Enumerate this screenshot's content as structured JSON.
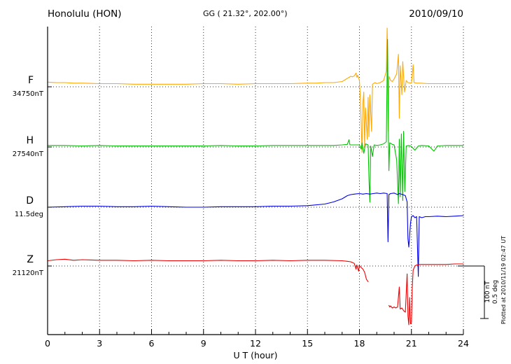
{
  "header": {
    "station": "Honolulu (HON)",
    "coords": "GG ( 21.32°, 202.00°)",
    "date": "2010/09/10"
  },
  "footer": {
    "xlabel": "U T (hour)"
  },
  "side": {
    "plotted_at": "Plotted at 2010/11/19 02:47 UT",
    "scale_nt": "100 nT",
    "scale_deg": "0.5 deg"
  },
  "chart_data": {
    "type": "line",
    "title": "Honolulu (HON) magnetogram",
    "xlabel": "U T (hour)",
    "x_range": [
      0,
      24
    ],
    "x_ticks": [
      0,
      3,
      6,
      9,
      12,
      15,
      18,
      21,
      24
    ],
    "grid": "dotted",
    "scale_bar": {
      "nT": 100,
      "deg": 0.5
    },
    "series": [
      {
        "name": "F",
        "base_label": "34750nT",
        "unit": "nT",
        "color": "#FFA800",
        "points": [
          [
            0,
            9
          ],
          [
            0.5,
            8
          ],
          [
            1,
            8
          ],
          [
            1.5,
            7
          ],
          [
            2,
            7
          ],
          [
            3,
            6
          ],
          [
            4,
            6
          ],
          [
            5,
            5
          ],
          [
            6,
            5
          ],
          [
            7,
            5
          ],
          [
            8,
            5
          ],
          [
            9,
            6
          ],
          [
            10,
            6
          ],
          [
            11,
            5
          ],
          [
            12,
            6
          ],
          [
            13,
            6
          ],
          [
            14,
            6
          ],
          [
            15,
            7
          ],
          [
            15.5,
            7
          ],
          [
            16,
            8
          ],
          [
            16.5,
            8
          ],
          [
            17,
            10
          ],
          [
            17.2,
            14
          ],
          [
            17.4,
            18
          ],
          [
            17.5,
            20
          ],
          [
            17.6,
            19
          ],
          [
            17.7,
            21
          ],
          [
            17.8,
            26
          ],
          [
            17.85,
            18
          ],
          [
            17.9,
            22
          ],
          [
            18.0,
            12
          ],
          [
            18.05,
            -20
          ],
          [
            18.1,
            -70
          ],
          [
            18.15,
            -125
          ],
          [
            18.2,
            -30
          ],
          [
            18.25,
            -10
          ],
          [
            18.3,
            -115
          ],
          [
            18.35,
            -40
          ],
          [
            18.45,
            -100
          ],
          [
            18.5,
            -20
          ],
          [
            18.55,
            -95
          ],
          [
            18.6,
            -15
          ],
          [
            18.7,
            -85
          ],
          [
            18.75,
            5
          ],
          [
            18.9,
            8
          ],
          [
            19.0,
            6
          ],
          [
            19.2,
            8
          ],
          [
            19.4,
            12
          ],
          [
            19.55,
            30
          ],
          [
            19.6,
            112
          ],
          [
            19.63,
            50
          ],
          [
            19.67,
            -85
          ],
          [
            19.7,
            20
          ],
          [
            19.8,
            12
          ],
          [
            19.9,
            10
          ],
          [
            20.0,
            15
          ],
          [
            20.15,
            25
          ],
          [
            20.25,
            62
          ],
          [
            20.3,
            -60
          ],
          [
            20.35,
            40
          ],
          [
            20.45,
            -15
          ],
          [
            20.5,
            48
          ],
          [
            20.6,
            -10
          ],
          [
            20.7,
            12
          ],
          [
            20.8,
            8
          ],
          [
            21.0,
            7
          ],
          [
            21.1,
            42
          ],
          [
            21.15,
            8
          ],
          [
            21.3,
            7
          ],
          [
            21.5,
            7
          ],
          [
            22,
            6
          ],
          [
            22.5,
            6
          ],
          [
            23,
            6
          ],
          [
            23.5,
            6
          ],
          [
            24,
            6
          ]
        ]
      },
      {
        "name": "H",
        "base_label": "27540nT",
        "unit": "nT",
        "color": "#00C000",
        "points": [
          [
            0,
            3
          ],
          [
            1,
            3
          ],
          [
            2,
            2
          ],
          [
            3,
            3
          ],
          [
            4,
            2
          ],
          [
            5,
            2
          ],
          [
            6,
            2
          ],
          [
            7,
            2
          ],
          [
            8,
            2
          ],
          [
            9,
            2
          ],
          [
            10,
            3
          ],
          [
            11,
            2
          ],
          [
            12,
            2
          ],
          [
            13,
            3
          ],
          [
            14,
            3
          ],
          [
            15,
            3
          ],
          [
            16,
            3
          ],
          [
            16.5,
            3
          ],
          [
            17,
            4
          ],
          [
            17.3,
            5
          ],
          [
            17.4,
            14
          ],
          [
            17.45,
            4
          ],
          [
            17.6,
            4
          ],
          [
            17.8,
            4
          ],
          [
            18.0,
            4
          ],
          [
            18.1,
            -4
          ],
          [
            18.15,
            8
          ],
          [
            18.25,
            -12
          ],
          [
            18.35,
            6
          ],
          [
            18.5,
            4
          ],
          [
            18.55,
            -60
          ],
          [
            18.6,
            -105
          ],
          [
            18.65,
            2
          ],
          [
            18.75,
            -18
          ],
          [
            18.85,
            4
          ],
          [
            19.0,
            3
          ],
          [
            19.2,
            4
          ],
          [
            19.4,
            6
          ],
          [
            19.55,
            10
          ],
          [
            19.62,
            205
          ],
          [
            19.66,
            60
          ],
          [
            19.7,
            -45
          ],
          [
            19.75,
            8
          ],
          [
            19.9,
            5
          ],
          [
            20.0,
            4
          ],
          [
            20.15,
            -25
          ],
          [
            20.25,
            -108
          ],
          [
            20.3,
            15
          ],
          [
            20.35,
            -95
          ],
          [
            20.42,
            25
          ],
          [
            20.5,
            -102
          ],
          [
            20.55,
            30
          ],
          [
            20.62,
            -85
          ],
          [
            20.7,
            2
          ],
          [
            20.85,
            3
          ],
          [
            21.0,
            1
          ],
          [
            21.2,
            -6
          ],
          [
            21.4,
            2
          ],
          [
            21.6,
            3
          ],
          [
            22.0,
            2
          ],
          [
            22.3,
            -8
          ],
          [
            22.5,
            2
          ],
          [
            23,
            3
          ],
          [
            23.5,
            3
          ],
          [
            24,
            3
          ]
        ]
      },
      {
        "name": "D",
        "base_label": "11.5deg",
        "unit": "deg",
        "color": "#0000E8",
        "points": [
          [
            0,
            0.0
          ],
          [
            1,
            0.005
          ],
          [
            2,
            0.01
          ],
          [
            3,
            0.01
          ],
          [
            4,
            0.005
          ],
          [
            5,
            0.005
          ],
          [
            6,
            0.01
          ],
          [
            7,
            0.005
          ],
          [
            8,
            0.0
          ],
          [
            9,
            0.0
          ],
          [
            10,
            0.005
          ],
          [
            11,
            0.005
          ],
          [
            12,
            0.005
          ],
          [
            13,
            0.01
          ],
          [
            14,
            0.01
          ],
          [
            15,
            0.015
          ],
          [
            16,
            0.03
          ],
          [
            16.5,
            0.05
          ],
          [
            17,
            0.08
          ],
          [
            17.3,
            0.11
          ],
          [
            17.5,
            0.12
          ],
          [
            17.7,
            0.125
          ],
          [
            18.0,
            0.13
          ],
          [
            18.2,
            0.125
          ],
          [
            18.4,
            0.13
          ],
          [
            18.6,
            0.125
          ],
          [
            18.8,
            0.13
          ],
          [
            19.0,
            0.135
          ],
          [
            19.2,
            0.13
          ],
          [
            19.4,
            0.135
          ],
          [
            19.6,
            0.13
          ],
          [
            19.65,
            -0.33
          ],
          [
            19.7,
            0.12
          ],
          [
            19.8,
            0.13
          ],
          [
            20.0,
            0.135
          ],
          [
            20.2,
            0.12
          ],
          [
            20.3,
            0.13
          ],
          [
            20.5,
            0.12
          ],
          [
            20.65,
            0.11
          ],
          [
            20.75,
            0.05
          ],
          [
            20.8,
            -0.3
          ],
          [
            20.85,
            -0.38
          ],
          [
            20.95,
            -0.15
          ],
          [
            21.0,
            -0.09
          ],
          [
            21.1,
            -0.08
          ],
          [
            21.2,
            -0.1
          ],
          [
            21.3,
            -0.09
          ],
          [
            21.4,
            -0.66
          ],
          [
            21.45,
            -0.09
          ],
          [
            21.6,
            -0.1
          ],
          [
            21.8,
            -0.09
          ],
          [
            22,
            -0.09
          ],
          [
            22.5,
            -0.085
          ],
          [
            23,
            -0.09
          ],
          [
            23.5,
            -0.085
          ],
          [
            24,
            -0.08
          ]
        ]
      },
      {
        "name": "Z",
        "base_label": "21120nT",
        "unit": "nT",
        "color": "#F00000",
        "points": [
          [
            0,
            10
          ],
          [
            0.5,
            12
          ],
          [
            1,
            13
          ],
          [
            1.5,
            11
          ],
          [
            2,
            12
          ],
          [
            3,
            11
          ],
          [
            4,
            11
          ],
          [
            5,
            10
          ],
          [
            6,
            11
          ],
          [
            7,
            10
          ],
          [
            8,
            10
          ],
          [
            9,
            10
          ],
          [
            10,
            11
          ],
          [
            11,
            10
          ],
          [
            12,
            10
          ],
          [
            13,
            11
          ],
          [
            14,
            10
          ],
          [
            15,
            11
          ],
          [
            16,
            11
          ],
          [
            17,
            10
          ],
          [
            17.3,
            9
          ],
          [
            17.5,
            8
          ],
          [
            17.7,
            5
          ],
          [
            17.8,
            -6
          ],
          [
            17.85,
            2
          ],
          [
            17.95,
            -10
          ],
          [
            18.0,
            1
          ],
          [
            18.1,
            -3
          ],
          [
            18.2,
            -6
          ],
          [
            18.3,
            -12
          ],
          [
            18.4,
            -25
          ],
          [
            18.5,
            -30
          ],
          null,
          [
            19.7,
            -75
          ],
          [
            19.75,
            -78
          ],
          [
            19.8,
            -76
          ],
          [
            19.9,
            -80
          ],
          [
            20.0,
            -78
          ],
          [
            20.1,
            -80
          ],
          [
            20.2,
            -78
          ],
          [
            20.3,
            -40
          ],
          [
            20.35,
            -82
          ],
          [
            20.45,
            -80
          ],
          [
            20.55,
            -85
          ],
          [
            20.65,
            -88
          ],
          [
            20.75,
            -15
          ],
          [
            20.8,
            -95
          ],
          [
            20.85,
            -112
          ],
          [
            20.9,
            -60
          ],
          [
            20.95,
            -110
          ],
          [
            21.0,
            -108
          ],
          [
            21.05,
            -40
          ],
          [
            21.1,
            -8
          ],
          [
            21.2,
            0
          ],
          [
            21.3,
            2
          ],
          [
            21.5,
            3
          ],
          [
            22,
            3
          ],
          [
            22.5,
            3
          ],
          [
            23,
            3
          ],
          [
            23.5,
            4
          ],
          [
            24,
            4
          ]
        ]
      }
    ]
  }
}
